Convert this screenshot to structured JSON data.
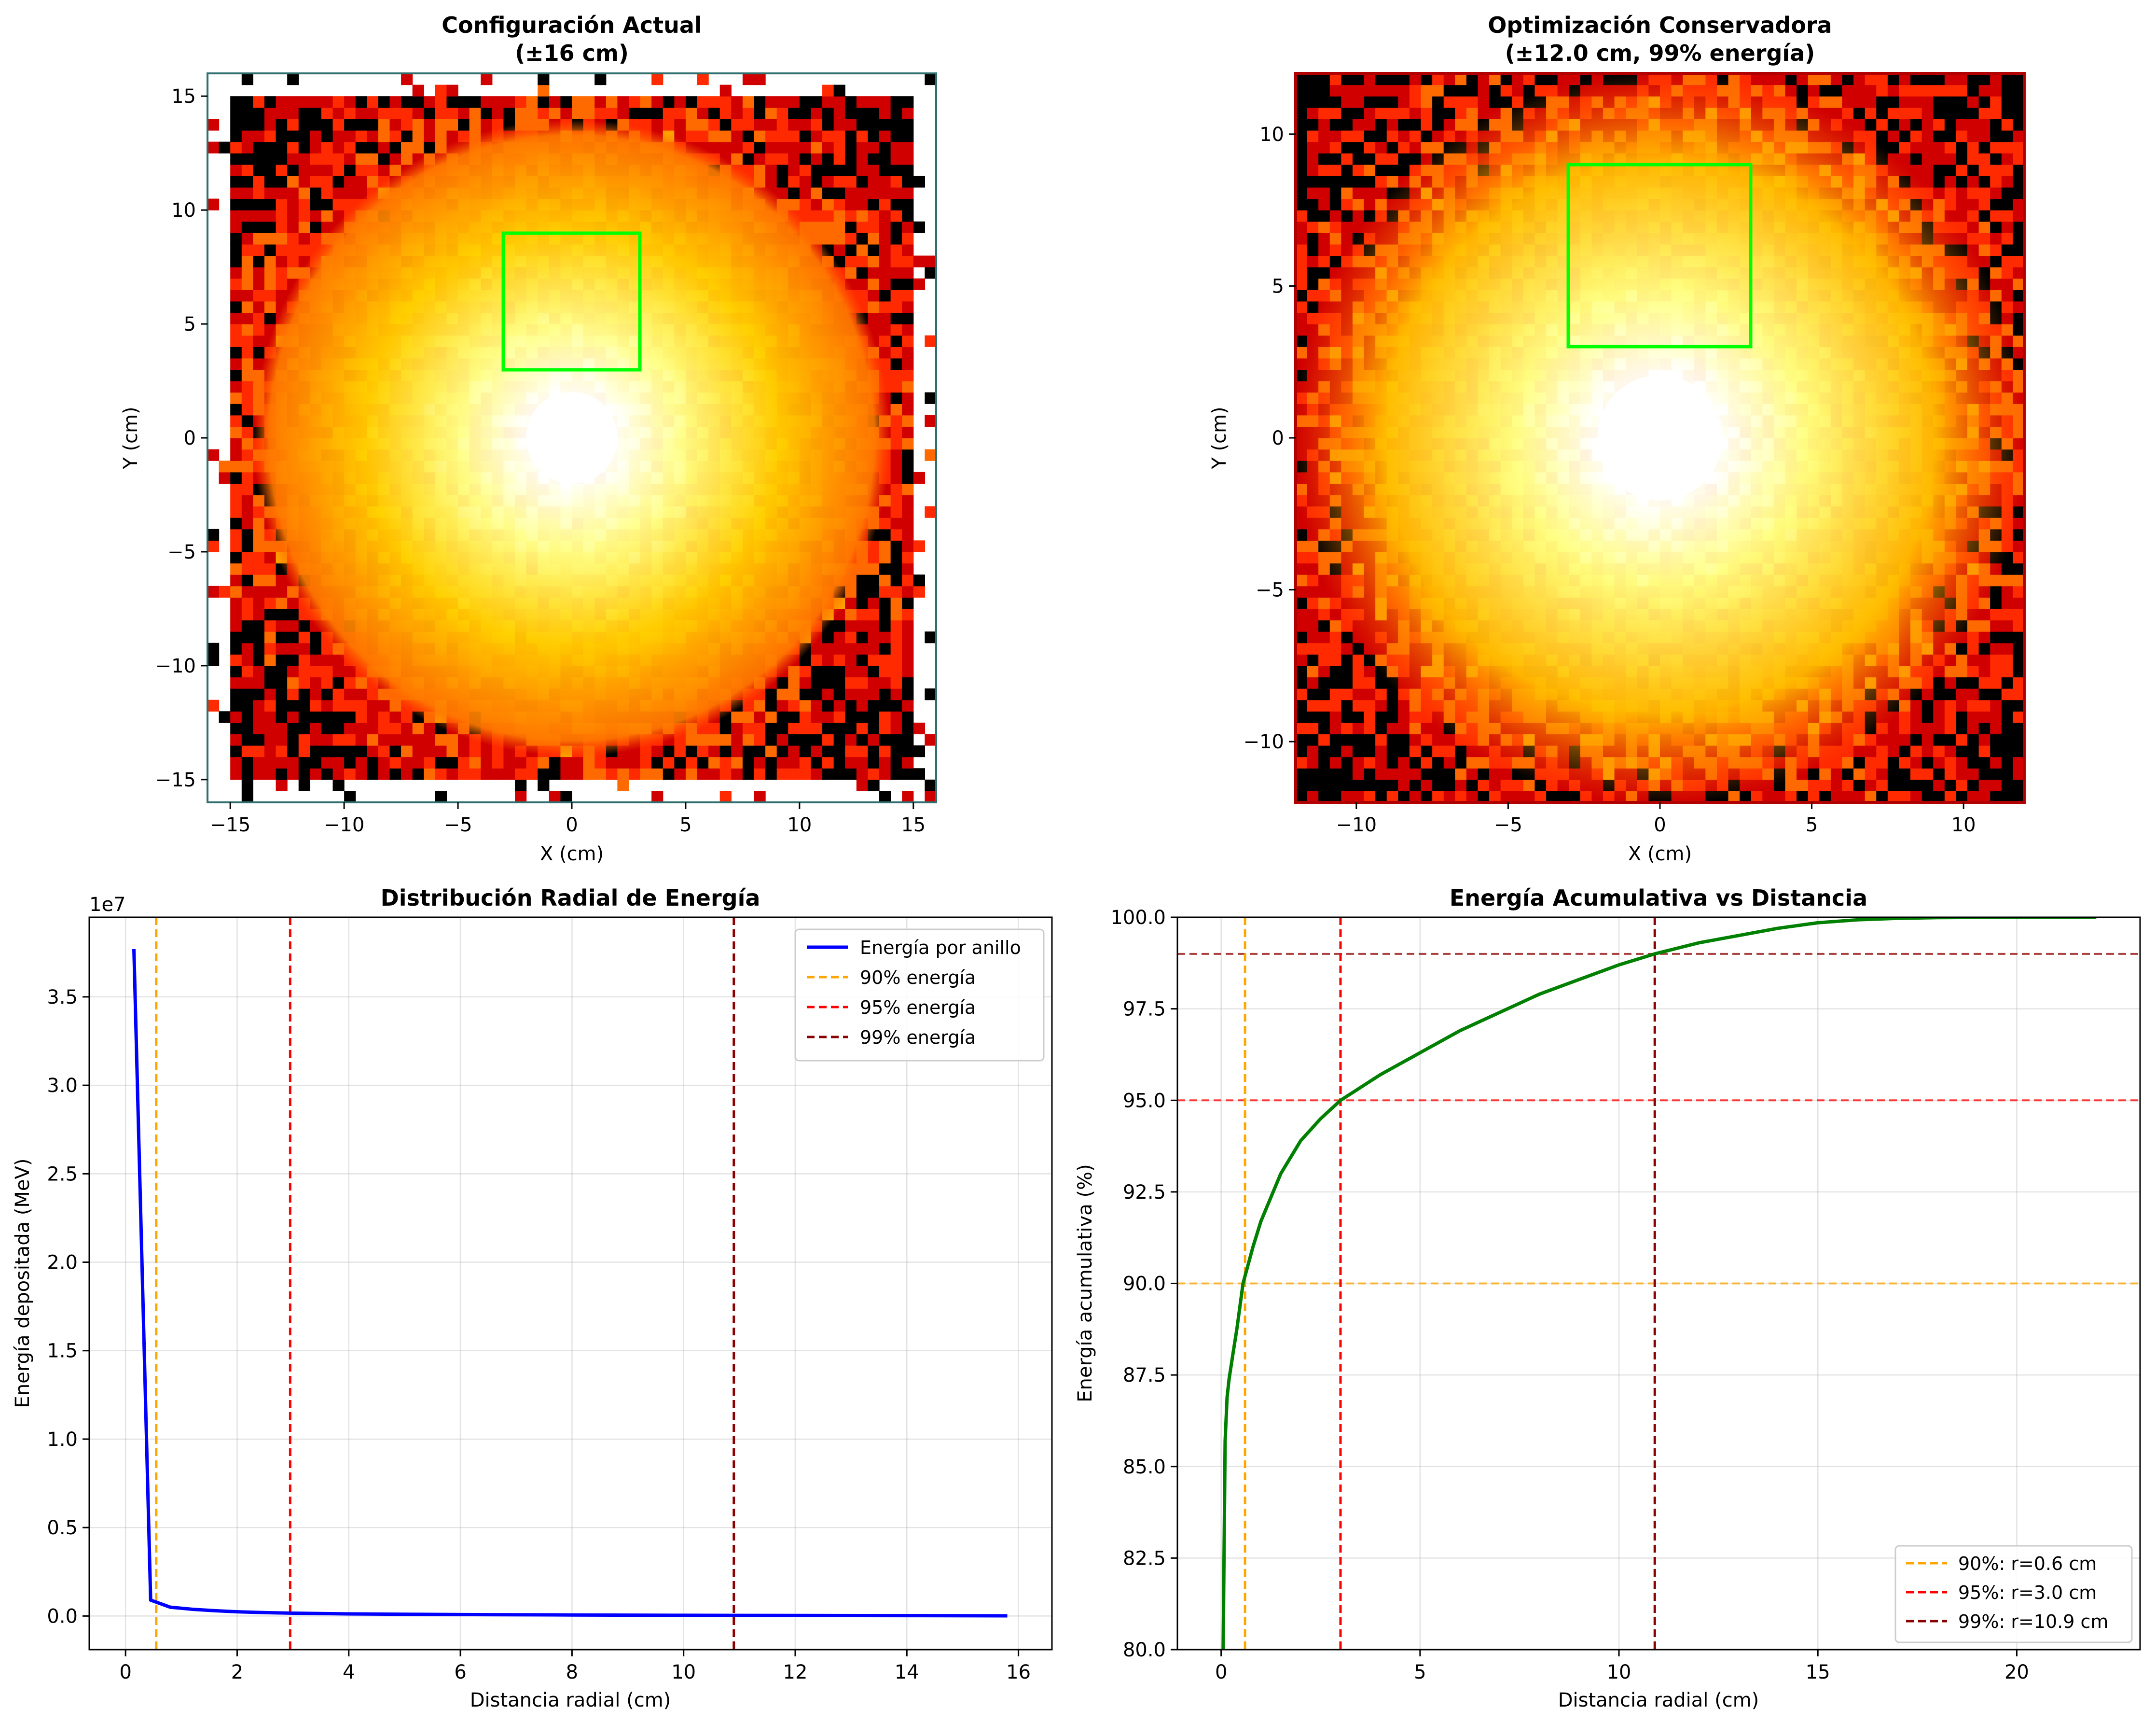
{
  "figure": {
    "panels": [
      {
        "id": "hm1",
        "title_line1": "Configuración Actual",
        "title_line2": "(±16 cm)",
        "xlabel": "X (cm)",
        "ylabel": "Y (cm)"
      },
      {
        "id": "hm2",
        "title_line1": "Optimización Conservadora",
        "title_line2": "(±12.0 cm, 99% energía)",
        "xlabel": "X (cm)",
        "ylabel": "Y (cm)"
      },
      {
        "id": "radial",
        "title": "Distribución Radial de Energía",
        "xlabel": "Distancia radial (cm)",
        "ylabel": "Energía depositada (MeV)",
        "offset_text": "1e7"
      },
      {
        "id": "cumul",
        "title": "Energía Acumulativa vs Distancia",
        "xlabel": "Distancia radial (cm)",
        "ylabel": "Energía acumulativa (%)"
      }
    ]
  },
  "chart_data": [
    {
      "type": "heatmap",
      "title": "Configuración Actual (±16 cm)",
      "xlabel": "X (cm)",
      "ylabel": "Y (cm)",
      "xlim": [
        -16,
        16
      ],
      "ylim": [
        -16,
        16
      ],
      "xticks": [
        -15,
        -10,
        -5,
        0,
        5,
        10,
        15
      ],
      "yticks": [
        -15,
        -10,
        -5,
        0,
        5,
        10,
        15
      ],
      "colormap": "hot (white = high energy, black = low)",
      "hotspot_center": [
        0,
        0
      ],
      "highlight_box": {
        "x": [
          -3,
          3
        ],
        "y": [
          3,
          9
        ],
        "color": "#00ff00"
      },
      "frame_color": "#2f6f6f"
    },
    {
      "type": "heatmap",
      "title": "Optimización Conservadora (±12.0 cm, 99% energía)",
      "xlabel": "X (cm)",
      "ylabel": "Y (cm)",
      "xlim": [
        -12,
        12
      ],
      "ylim": [
        -12,
        12
      ],
      "xticks": [
        -10,
        -5,
        0,
        5,
        10
      ],
      "yticks": [
        -10,
        -5,
        0,
        5,
        10
      ],
      "colormap": "hot (white = high energy, black = low)",
      "hotspot_center": [
        0,
        0
      ],
      "highlight_box": {
        "x": [
          -3,
          3
        ],
        "y": [
          3,
          9
        ],
        "color": "#00ff00"
      },
      "frame_color": "#b00000"
    },
    {
      "type": "line",
      "title": "Distribución Radial de Energía",
      "xlabel": "Distancia radial (cm)",
      "ylabel": "Energía depositada (MeV)",
      "xlim": [
        -0.65,
        16.6
      ],
      "ylim": [
        -0.19,
        3.95
      ],
      "y_scale_note": "1e7",
      "xticks": [
        0,
        2,
        4,
        6,
        8,
        10,
        12,
        14,
        16
      ],
      "yticks": [
        0.0,
        0.5,
        1.0,
        1.5,
        2.0,
        2.5,
        3.0,
        3.5
      ],
      "grid": true,
      "legend_position": "top-right",
      "series": [
        {
          "name": "Energía por anillo",
          "color": "#0000ff",
          "x": [
            0.15,
            0.45,
            0.8,
            1.2,
            1.6,
            2.0,
            2.5,
            3.0,
            4.0,
            5.0,
            6.0,
            8.0,
            10.0,
            12.0,
            14.0,
            15.8
          ],
          "y": [
            3.77,
            0.09,
            0.05,
            0.038,
            0.03,
            0.024,
            0.019,
            0.016,
            0.012,
            0.01,
            0.008,
            0.006,
            0.004,
            0.003,
            0.002,
            0.001
          ]
        }
      ],
      "vlines": [
        {
          "name": "90% energía",
          "x": 0.55,
          "color": "#ffa500"
        },
        {
          "name": "95% energía",
          "x": 2.95,
          "color": "#ff0000"
        },
        {
          "name": "99% energía",
          "x": 10.9,
          "color": "#8b0000"
        }
      ]
    },
    {
      "type": "line",
      "title": "Energía Acumulativa vs Distancia",
      "xlabel": "Distancia radial (cm)",
      "ylabel": "Energía acumulativa (%)",
      "xlim": [
        -1.1,
        23.1
      ],
      "ylim": [
        80,
        100
      ],
      "xticks": [
        0,
        5,
        10,
        15,
        20
      ],
      "yticks": [
        80.0,
        82.5,
        85.0,
        87.5,
        90.0,
        92.5,
        95.0,
        97.5,
        100.0
      ],
      "grid": true,
      "legend_position": "bottom-right",
      "series": [
        {
          "name": "",
          "color": "#008000",
          "x": [
            0.05,
            0.1,
            0.15,
            0.2,
            0.3,
            0.4,
            0.55,
            0.8,
            1.0,
            1.5,
            2.0,
            2.5,
            3.0,
            4.0,
            5.0,
            6.0,
            7.0,
            8.0,
            9.0,
            10.0,
            10.9,
            12.0,
            13.0,
            14.0,
            15.0,
            16.0,
            17.0,
            18.0,
            20.0,
            22.0
          ],
          "y": [
            80.0,
            85.7,
            86.9,
            87.4,
            88.1,
            88.8,
            90.0,
            91.0,
            91.7,
            93.0,
            93.9,
            94.5,
            95.0,
            95.7,
            96.3,
            96.9,
            97.4,
            97.9,
            98.3,
            98.7,
            99.0,
            99.3,
            99.5,
            99.7,
            99.85,
            99.93,
            99.97,
            99.99,
            100.0,
            100.0
          ]
        }
      ],
      "hlines": [
        {
          "y": 90,
          "color": "#ffa500"
        },
        {
          "y": 95,
          "color": "#ff0000"
        },
        {
          "y": 99,
          "color": "#8b0000"
        }
      ],
      "vlines": [
        {
          "name": "90%: r=0.6 cm",
          "x": 0.6,
          "color": "#ffa500"
        },
        {
          "name": "95%: r=3.0 cm",
          "x": 3.0,
          "color": "#ff0000"
        },
        {
          "name": "99%: r=10.9 cm",
          "x": 10.9,
          "color": "#8b0000"
        }
      ]
    }
  ]
}
